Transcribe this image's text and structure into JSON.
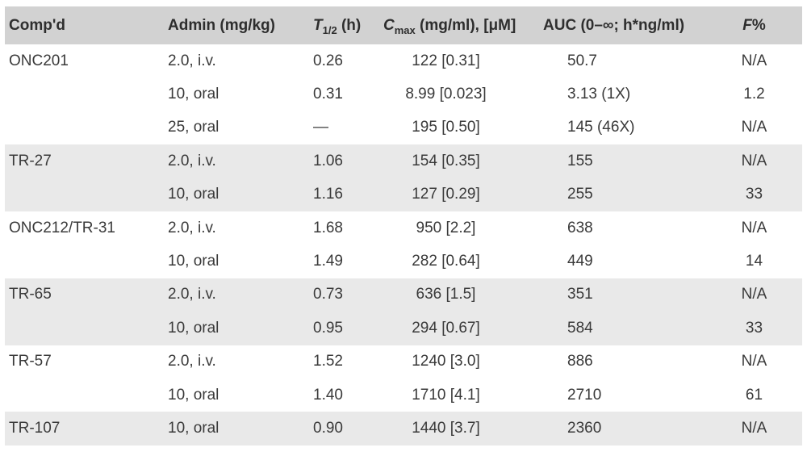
{
  "colors": {
    "page_bg": "#ffffff",
    "header_bg": "#d2d2d2",
    "shaded_row_bg": "#e9e9e9",
    "body_text": "#3a3a3a",
    "header_text": "#2e2e2e"
  },
  "table": {
    "header": {
      "compd": "Comp'd",
      "admin": "Admin (mg/kg)",
      "thalf": {
        "symbol": "T",
        "sub": "1/2",
        "rest": " (h)"
      },
      "cmax": {
        "symbol": "C",
        "sub": "max",
        "rest": " (mg/ml), [μM]"
      },
      "auc": "AUC (0–∞; h*ng/ml)",
      "f": {
        "symbol": "F",
        "rest": "%"
      }
    },
    "groups": [
      {
        "compound": "ONC201",
        "shaded": false,
        "rows": [
          {
            "admin": "2.0, i.v.",
            "t_half": "0.26",
            "cmax": "122 [0.31]",
            "auc": "50.7",
            "f_pct": "N/A"
          },
          {
            "admin": "10, oral",
            "t_half": "0.31",
            "cmax": "8.99 [0.023]",
            "auc": "3.13 (1X)",
            "f_pct": "1.2"
          },
          {
            "admin": "25, oral",
            "t_half": "—",
            "cmax": "195 [0.50]",
            "auc": "145 (46X)",
            "f_pct": "N/A"
          }
        ]
      },
      {
        "compound": "TR-27",
        "shaded": true,
        "rows": [
          {
            "admin": "2.0, i.v.",
            "t_half": "1.06",
            "cmax": "154 [0.35]",
            "auc": "155",
            "f_pct": "N/A"
          },
          {
            "admin": "10, oral",
            "t_half": "1.16",
            "cmax": "127 [0.29]",
            "auc": "255",
            "f_pct": "33"
          }
        ]
      },
      {
        "compound": "ONC212/TR-31",
        "shaded": false,
        "rows": [
          {
            "admin": "2.0, i.v.",
            "t_half": "1.68",
            "cmax": "950 [2.2]",
            "auc": "638",
            "f_pct": "N/A"
          },
          {
            "admin": "10, oral",
            "t_half": "1.49",
            "cmax": "282 [0.64]",
            "auc": "449",
            "f_pct": "14"
          }
        ]
      },
      {
        "compound": "TR-65",
        "shaded": true,
        "rows": [
          {
            "admin": "2.0, i.v.",
            "t_half": "0.73",
            "cmax": "636 [1.5]",
            "auc": "351",
            "f_pct": "N/A"
          },
          {
            "admin": "10, oral",
            "t_half": "0.95",
            "cmax": "294 [0.67]",
            "auc": "584",
            "f_pct": "33"
          }
        ]
      },
      {
        "compound": "TR-57",
        "shaded": false,
        "rows": [
          {
            "admin": "2.0, i.v.",
            "t_half": "1.52",
            "cmax": "1240 [3.0]",
            "auc": "886",
            "f_pct": "N/A"
          },
          {
            "admin": "10, oral",
            "t_half": "1.40",
            "cmax": "1710 [4.1]",
            "auc": "2710",
            "f_pct": "61"
          }
        ]
      },
      {
        "compound": "TR-107",
        "shaded": true,
        "rows": [
          {
            "admin": "10, oral",
            "t_half": "0.90",
            "cmax": "1440 [3.7]",
            "auc": "2360",
            "f_pct": "N/A"
          }
        ]
      }
    ]
  }
}
